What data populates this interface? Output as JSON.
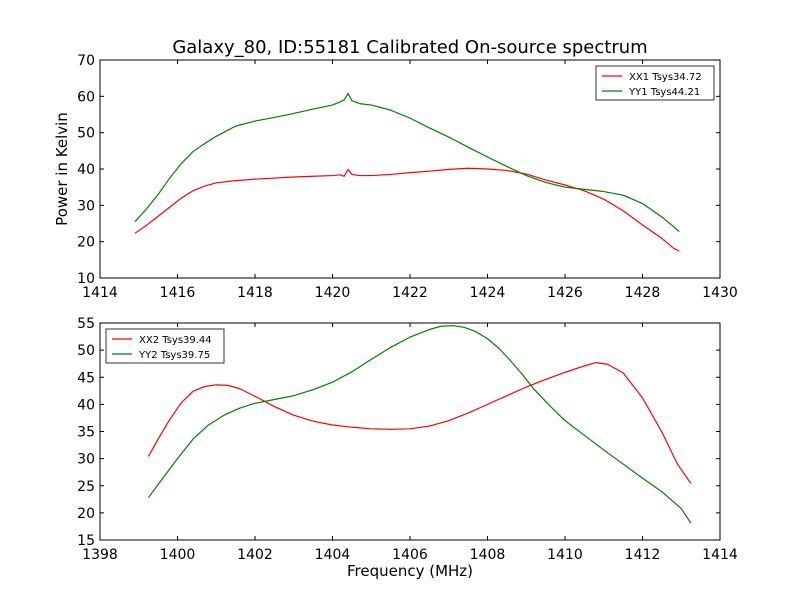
{
  "title": "Galaxy_80, ID:55181 Calibrated On-source spectrum",
  "chart_data": [
    {
      "type": "line",
      "ylabel": "Power in Kelvin",
      "xlabel": "",
      "xlim": [
        1414,
        1430
      ],
      "ylim": [
        10,
        70
      ],
      "xticks": [
        "1414",
        "1416",
        "1418",
        "1420",
        "1422",
        "1424",
        "1426",
        "1428",
        "1430"
      ],
      "yticks": [
        "10",
        "20",
        "30",
        "40",
        "50",
        "60",
        "70"
      ],
      "grid": false,
      "legend_position": "top-right",
      "series": [
        {
          "name": "XX1 Tsys34.72",
          "color": "#ff0000",
          "x": [
            1414.9,
            1415.2,
            1415.5,
            1415.8,
            1416.1,
            1416.4,
            1416.7,
            1417.0,
            1417.5,
            1418.0,
            1418.5,
            1419.0,
            1419.5,
            1420.0,
            1420.2,
            1420.3,
            1420.4,
            1420.5,
            1420.7,
            1421.0,
            1421.5,
            1422.0,
            1422.5,
            1423.0,
            1423.5,
            1424.0,
            1424.5,
            1425.0,
            1425.5,
            1426.0,
            1426.5,
            1427.0,
            1427.5,
            1428.0,
            1428.5,
            1428.8,
            1428.95
          ],
          "y": [
            22.3,
            24.5,
            27.0,
            29.5,
            32.0,
            34.0,
            35.3,
            36.2,
            36.8,
            37.2,
            37.5,
            37.8,
            38.0,
            38.2,
            38.4,
            38.0,
            39.9,
            38.5,
            38.2,
            38.2,
            38.5,
            39.0,
            39.4,
            39.9,
            40.2,
            40.0,
            39.6,
            38.6,
            37.0,
            35.6,
            34.0,
            31.7,
            28.5,
            24.6,
            20.9,
            18.2,
            17.4
          ]
        },
        {
          "name": "YY1 Tsys44.21",
          "color": "#008000",
          "x": [
            1414.9,
            1415.2,
            1415.5,
            1415.8,
            1416.1,
            1416.4,
            1416.7,
            1417.0,
            1417.5,
            1418.0,
            1418.5,
            1419.0,
            1419.5,
            1420.0,
            1420.2,
            1420.3,
            1420.4,
            1420.5,
            1420.7,
            1421.0,
            1421.5,
            1422.0,
            1422.5,
            1423.0,
            1423.5,
            1424.0,
            1424.5,
            1425.0,
            1425.5,
            1426.0,
            1426.5,
            1427.0,
            1427.5,
            1428.0,
            1428.5,
            1428.95
          ],
          "y": [
            25.5,
            29.0,
            33.0,
            37.5,
            41.5,
            44.8,
            47.0,
            49.0,
            51.8,
            53.2,
            54.2,
            55.3,
            56.5,
            57.6,
            58.5,
            59.0,
            60.8,
            58.8,
            58.0,
            57.6,
            56.2,
            54.0,
            51.3,
            48.8,
            46.0,
            43.3,
            40.7,
            38.2,
            36.3,
            35.0,
            34.4,
            33.8,
            32.8,
            30.5,
            26.8,
            22.8
          ]
        }
      ]
    },
    {
      "type": "line",
      "xlabel": "Frequency (MHz)",
      "ylabel": "",
      "xlim": [
        1398,
        1414
      ],
      "ylim": [
        15,
        55
      ],
      "xticks": [
        "1398",
        "1400",
        "1402",
        "1404",
        "1406",
        "1408",
        "1410",
        "1412",
        "1414"
      ],
      "yticks": [
        "15",
        "20",
        "25",
        "30",
        "35",
        "40",
        "45",
        "50",
        "55"
      ],
      "grid": false,
      "legend_position": "top-left",
      "series": [
        {
          "name": "XX2 Tsys39.44",
          "color": "#ff0000",
          "x": [
            1399.25,
            1399.5,
            1399.8,
            1400.1,
            1400.4,
            1400.7,
            1401.0,
            1401.3,
            1401.6,
            1402.0,
            1402.5,
            1403.0,
            1403.5,
            1404.0,
            1404.5,
            1405.0,
            1405.5,
            1406.0,
            1406.5,
            1407.0,
            1407.5,
            1408.0,
            1408.5,
            1409.0,
            1409.5,
            1410.0,
            1410.5,
            1410.8,
            1411.1,
            1411.5,
            1412.0,
            1412.5,
            1412.9,
            1413.25
          ],
          "y": [
            30.4,
            33.6,
            37.2,
            40.3,
            42.4,
            43.3,
            43.6,
            43.5,
            42.9,
            41.5,
            39.6,
            38.0,
            36.9,
            36.2,
            35.8,
            35.5,
            35.4,
            35.5,
            36.0,
            37.0,
            38.4,
            40.0,
            41.6,
            43.2,
            44.6,
            45.9,
            47.1,
            47.7,
            47.4,
            45.8,
            41.2,
            34.9,
            29.0,
            25.4
          ]
        },
        {
          "name": "YY2 Tsys39.75",
          "color": "#008000",
          "x": [
            1399.25,
            1399.6,
            1400.0,
            1400.4,
            1400.8,
            1401.2,
            1401.6,
            1402.0,
            1402.5,
            1403.0,
            1403.5,
            1404.0,
            1404.5,
            1405.0,
            1405.5,
            1406.0,
            1406.5,
            1406.8,
            1407.1,
            1407.4,
            1407.7,
            1408.0,
            1408.3,
            1408.6,
            1408.9,
            1409.2,
            1409.6,
            1410.0,
            1410.5,
            1411.0,
            1411.5,
            1412.0,
            1412.5,
            1413.0,
            1413.25
          ],
          "y": [
            22.8,
            26.2,
            30.0,
            33.6,
            36.2,
            38.0,
            39.3,
            40.2,
            40.9,
            41.6,
            42.7,
            44.1,
            46.0,
            48.3,
            50.5,
            52.4,
            53.8,
            54.4,
            54.5,
            54.2,
            53.4,
            52.1,
            50.3,
            48.0,
            45.5,
            42.8,
            39.8,
            37.0,
            34.3,
            31.6,
            29.0,
            26.4,
            23.9,
            20.8,
            18.1
          ]
        }
      ]
    }
  ]
}
